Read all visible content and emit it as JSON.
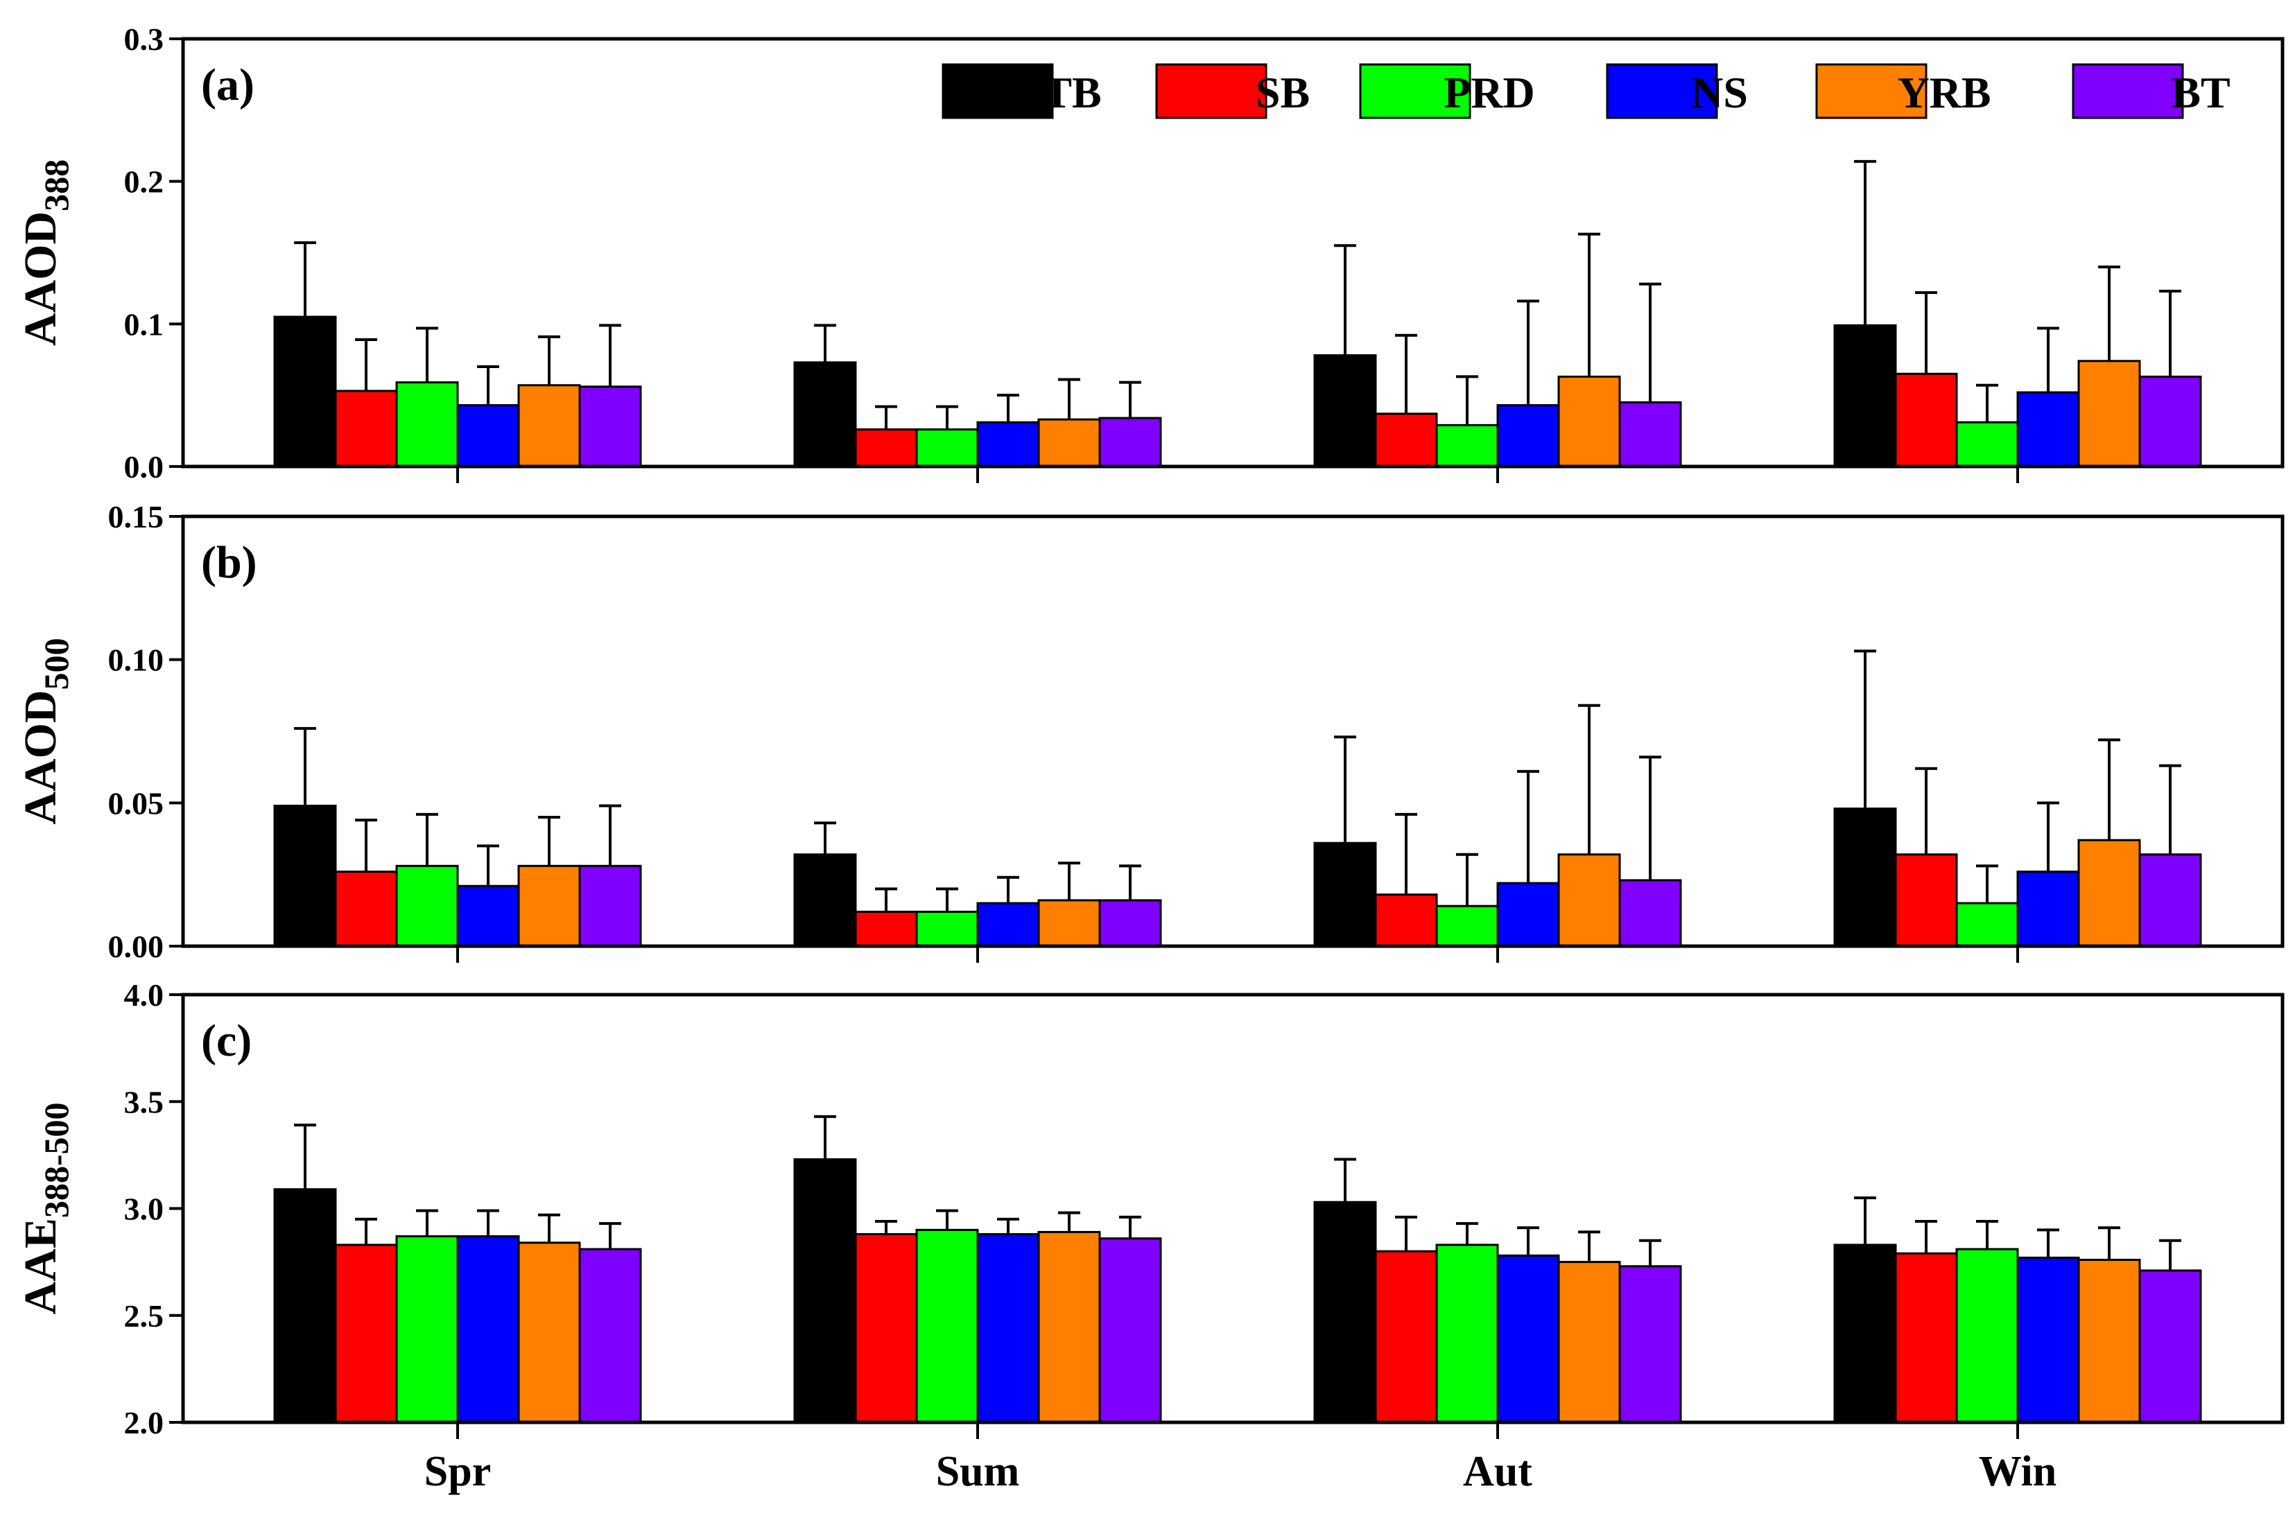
{
  "legend": [
    {
      "name": "TB",
      "color": "#000000"
    },
    {
      "name": "SB",
      "color": "#ff0000"
    },
    {
      "name": "PRD",
      "color": "#00ff00"
    },
    {
      "name": "NS",
      "color": "#0000ff"
    },
    {
      "name": "YRB",
      "color": "#ff8000"
    },
    {
      "name": "BT",
      "color": "#8000ff"
    }
  ],
  "chart_data": [
    {
      "type": "bar",
      "panel_label": "(a)",
      "ylabel": "AAOD",
      "ylabel_sub": "388",
      "categories": [
        "Spr",
        "Sum",
        "Aut",
        "Win"
      ],
      "ylim": [
        0,
        0.3
      ],
      "yticks": [
        "0.0",
        "0.1",
        "0.2",
        "0.3"
      ],
      "tick_values": [
        0,
        0.1,
        0.2,
        0.3
      ],
      "series": [
        {
          "name": "TB",
          "values": [
            0.105,
            0.073,
            0.078,
            0.099
          ],
          "errors": [
            0.052,
            0.026,
            0.077,
            0.115
          ]
        },
        {
          "name": "SB",
          "values": [
            0.053,
            0.026,
            0.037,
            0.065
          ],
          "errors": [
            0.036,
            0.016,
            0.055,
            0.057
          ]
        },
        {
          "name": "PRD",
          "values": [
            0.059,
            0.026,
            0.029,
            0.031
          ],
          "errors": [
            0.038,
            0.016,
            0.034,
            0.026
          ]
        },
        {
          "name": "NS",
          "values": [
            0.043,
            0.031,
            0.043,
            0.052
          ],
          "errors": [
            0.027,
            0.019,
            0.073,
            0.045
          ]
        },
        {
          "name": "YRB",
          "values": [
            0.057,
            0.033,
            0.063,
            0.074
          ],
          "errors": [
            0.034,
            0.028,
            0.1,
            0.066
          ]
        },
        {
          "name": "BT",
          "values": [
            0.056,
            0.034,
            0.045,
            0.063
          ],
          "errors": [
            0.043,
            0.025,
            0.083,
            0.06
          ]
        }
      ]
    },
    {
      "type": "bar",
      "panel_label": "(b)",
      "ylabel": "AAOD",
      "ylabel_sub": "500",
      "categories": [
        "Spr",
        "Sum",
        "Aut",
        "Win"
      ],
      "ylim": [
        0,
        0.15
      ],
      "yticks": [
        "0.00",
        "0.05",
        "0.10",
        "0.15"
      ],
      "tick_values": [
        0,
        0.05,
        0.1,
        0.15
      ],
      "series": [
        {
          "name": "TB",
          "values": [
            0.049,
            0.032,
            0.036,
            0.048
          ],
          "errors": [
            0.027,
            0.011,
            0.037,
            0.055
          ]
        },
        {
          "name": "SB",
          "values": [
            0.026,
            0.012,
            0.018,
            0.032
          ],
          "errors": [
            0.018,
            0.008,
            0.028,
            0.03
          ]
        },
        {
          "name": "PRD",
          "values": [
            0.028,
            0.012,
            0.014,
            0.015
          ],
          "errors": [
            0.018,
            0.008,
            0.018,
            0.013
          ]
        },
        {
          "name": "NS",
          "values": [
            0.021,
            0.015,
            0.022,
            0.026
          ],
          "errors": [
            0.014,
            0.009,
            0.039,
            0.024
          ]
        },
        {
          "name": "YRB",
          "values": [
            0.028,
            0.016,
            0.032,
            0.037
          ],
          "errors": [
            0.017,
            0.013,
            0.052,
            0.035
          ]
        },
        {
          "name": "BT",
          "values": [
            0.028,
            0.016,
            0.023,
            0.032
          ],
          "errors": [
            0.021,
            0.012,
            0.043,
            0.031
          ]
        }
      ]
    },
    {
      "type": "bar",
      "panel_label": "(c)",
      "ylabel": "AAE",
      "ylabel_sub": "388-500",
      "categories": [
        "Spr",
        "Sum",
        "Aut",
        "Win"
      ],
      "ylim": [
        2.0,
        4.0
      ],
      "yticks": [
        "2.0",
        "2.5",
        "3.0",
        "3.5",
        "4.0"
      ],
      "tick_values": [
        2.0,
        2.5,
        3.0,
        3.5,
        4.0
      ],
      "series": [
        {
          "name": "TB",
          "values": [
            3.09,
            3.23,
            3.03,
            2.83
          ],
          "errors": [
            0.3,
            0.2,
            0.2,
            0.22
          ]
        },
        {
          "name": "SB",
          "values": [
            2.83,
            2.88,
            2.8,
            2.79
          ],
          "errors": [
            0.12,
            0.06,
            0.16,
            0.15
          ]
        },
        {
          "name": "PRD",
          "values": [
            2.87,
            2.9,
            2.83,
            2.81
          ],
          "errors": [
            0.12,
            0.09,
            0.1,
            0.13
          ]
        },
        {
          "name": "NS",
          "values": [
            2.87,
            2.88,
            2.78,
            2.77
          ],
          "errors": [
            0.12,
            0.07,
            0.13,
            0.13
          ]
        },
        {
          "name": "YRB",
          "values": [
            2.84,
            2.89,
            2.75,
            2.76
          ],
          "errors": [
            0.13,
            0.09,
            0.14,
            0.15
          ]
        },
        {
          "name": "BT",
          "values": [
            2.81,
            2.86,
            2.73,
            2.71
          ],
          "errors": [
            0.12,
            0.1,
            0.12,
            0.14
          ]
        }
      ]
    }
  ]
}
